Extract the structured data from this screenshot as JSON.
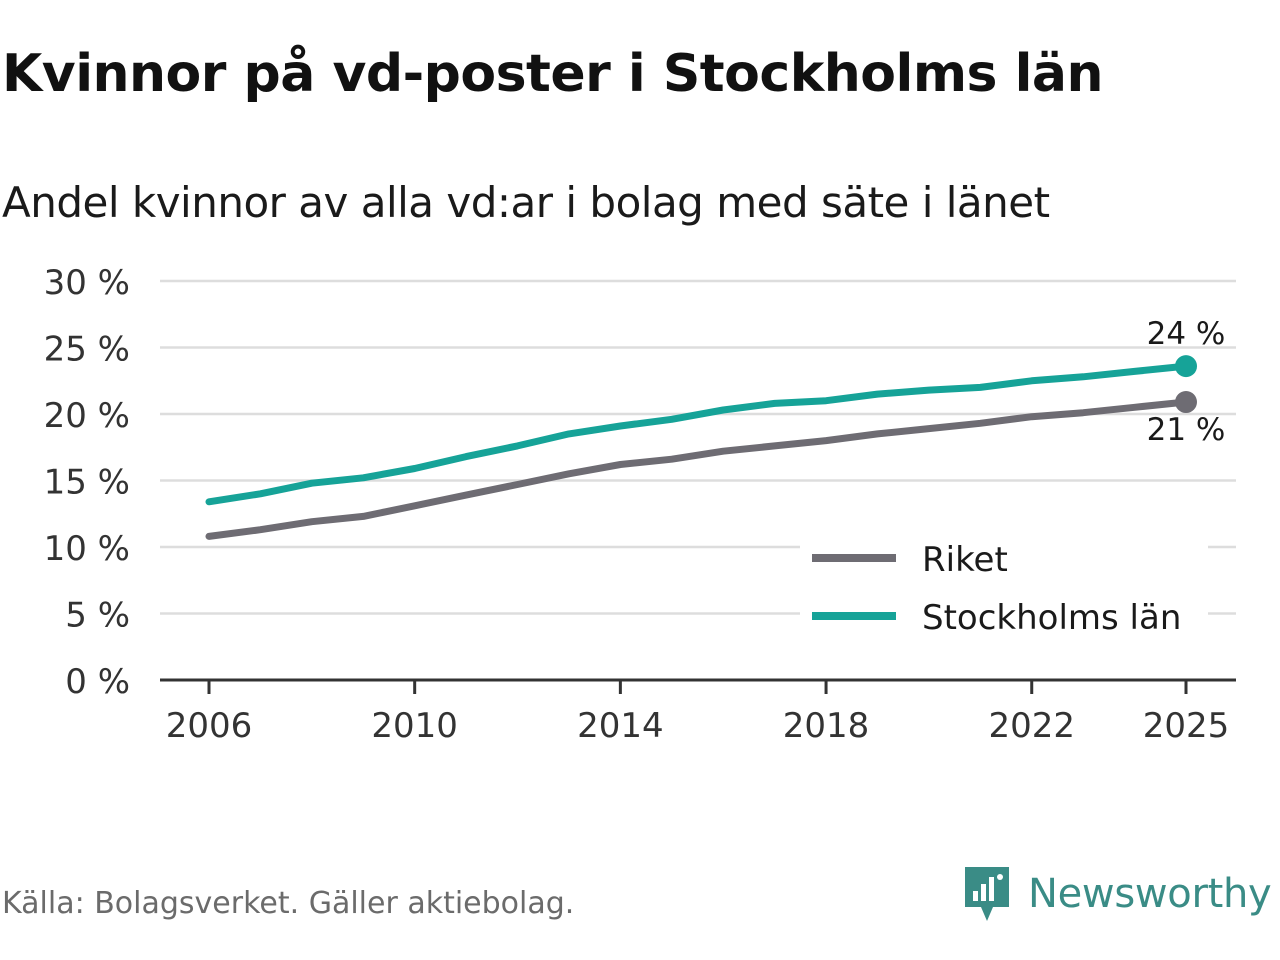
{
  "header": {
    "title": "Kvinnor på vd-poster i Stockholms län",
    "subtitle": "Andel kvinnor av alla vd:ar i bolag med säte i länet"
  },
  "footer": {
    "source": "Källa: Bolagsverket. Gäller aktiebolag.",
    "brand": "Newsworthy"
  },
  "colors": {
    "riket": "#6e6c73",
    "stockholm": "#16a398",
    "grid": "#dddddd",
    "axis": "#333333",
    "brand": "#3a8c86"
  },
  "chart_data": {
    "type": "line",
    "title": "Kvinnor på vd-poster i Stockholms län",
    "subtitle": "Andel kvinnor av alla vd:ar i bolag med säte i länet",
    "xlabel": "",
    "ylabel": "",
    "x": [
      2006,
      2007,
      2008,
      2009,
      2010,
      2011,
      2012,
      2013,
      2014,
      2015,
      2016,
      2017,
      2018,
      2019,
      2020,
      2021,
      2022,
      2023,
      2024,
      2025
    ],
    "xticks": [
      2006,
      2010,
      2014,
      2018,
      2022,
      2025
    ],
    "ylim": [
      0,
      30
    ],
    "yticks": [
      0,
      5,
      10,
      15,
      20,
      25,
      30
    ],
    "ytick_labels": [
      "0 %",
      "5 %",
      "10 %",
      "15 %",
      "20 %",
      "25 %",
      "30 %"
    ],
    "grid": true,
    "legend_position": "bottom-right",
    "series": [
      {
        "name": "Riket",
        "key": "riket",
        "values": [
          10.8,
          11.3,
          11.9,
          12.3,
          13.1,
          13.9,
          14.7,
          15.5,
          16.2,
          16.6,
          17.2,
          17.6,
          18.0,
          18.5,
          18.9,
          19.3,
          19.8,
          20.1,
          20.5,
          20.9
        ],
        "end_label": "21 %",
        "end_label_position": "below"
      },
      {
        "name": "Stockholms län",
        "key": "stockholm",
        "values": [
          13.4,
          14.0,
          14.8,
          15.2,
          15.9,
          16.8,
          17.6,
          18.5,
          19.1,
          19.6,
          20.3,
          20.8,
          21.0,
          21.5,
          21.8,
          22.0,
          22.5,
          22.8,
          23.2,
          23.6
        ],
        "end_label": "24 %",
        "end_label_position": "above"
      }
    ]
  }
}
